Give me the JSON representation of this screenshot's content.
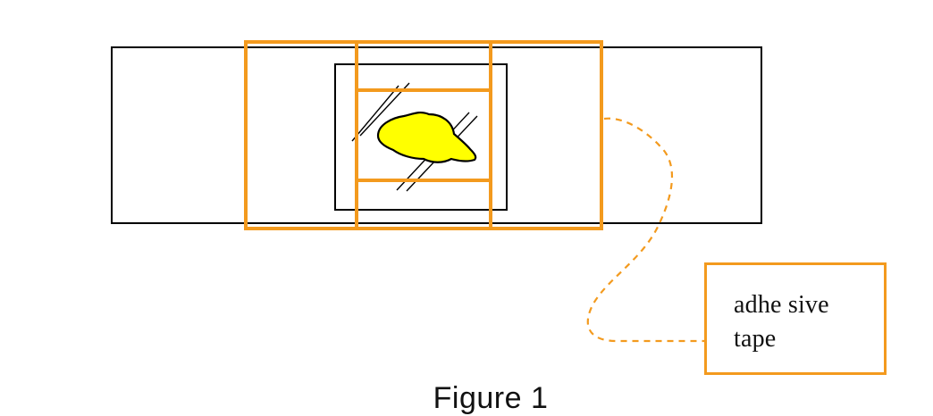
{
  "diagram": {
    "callout": {
      "line1": "adhe sive",
      "line2": "tape"
    },
    "caption": "Figure 1"
  },
  "colors": {
    "tape": "#f39a1e",
    "specimen": "#ffff00",
    "outline": "#000000",
    "background": "#ffffff"
  }
}
